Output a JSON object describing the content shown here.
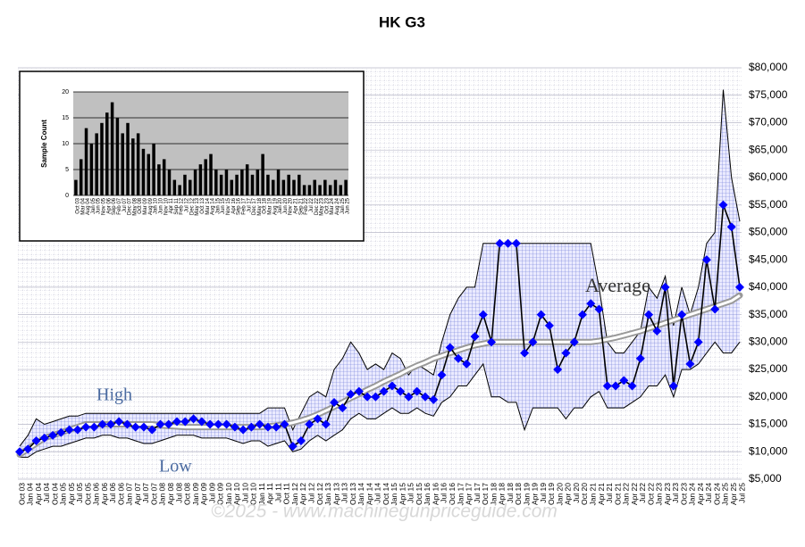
{
  "chart_data": [
    {
      "type": "line",
      "title": "HK G3",
      "source": "©2025 - www.machinegunpriceguide.com",
      "categories": [
        "Oct 03",
        "Jan 04",
        "Apr 04",
        "Jul 04",
        "Oct 04",
        "Jan 05",
        "Apr 05",
        "Jul 05",
        "Oct 05",
        "Jan 06",
        "Apr 06",
        "Jul 06",
        "Oct 06",
        "Jan 07",
        "Apr 07",
        "Jul 07",
        "Oct 07",
        "Jan 08",
        "Apr 08",
        "Jul 08",
        "Oct 08",
        "Jan 09",
        "Apr 09",
        "Jul 09",
        "Oct 09",
        "Jan 10",
        "Apr 10",
        "Jul 10",
        "Oct 10",
        "Jan 11",
        "Apr 11",
        "Jul 11",
        "Oct 11",
        "Jan 12",
        "Apr 12",
        "Jul 12",
        "Oct 12",
        "Jan 13",
        "Apr 13",
        "Jul 13",
        "Oct 13",
        "Jan 14",
        "Apr 14",
        "Jul 14",
        "Oct 14",
        "Jan 15",
        "Apr 15",
        "Jul 15",
        "Oct 15",
        "Jan 16",
        "Apr 16",
        "Jul 16",
        "Oct 16",
        "Jan 17",
        "Apr 17",
        "Jul 17",
        "Oct 17",
        "Jan 18",
        "Apr 18",
        "Jul 18",
        "Oct 18",
        "Jan 19",
        "Apr 19",
        "Jul 19",
        "Oct 19",
        "Jan 20",
        "Apr 20",
        "Jul 20",
        "Oct 20",
        "Jan 21",
        "Apr 21",
        "Jul 21",
        "Oct 21",
        "Jan 22",
        "Apr 22",
        "Jul 22",
        "Oct 22",
        "Jan 23",
        "Apr 23",
        "Jul 23",
        "Oct 23",
        "Jan 24",
        "Apr 24",
        "Jul 24",
        "Oct 24",
        "Jan 25",
        "Apr 25",
        "Jul 25"
      ],
      "series": [
        {
          "name": "High",
          "color": "#000000",
          "values": [
            11000,
            13000,
            16000,
            15000,
            15500,
            16000,
            16500,
            16500,
            17000,
            17000,
            17000,
            17000,
            17000,
            17000,
            17000,
            17000,
            17000,
            17000,
            17000,
            17000,
            17000,
            17000,
            17000,
            17000,
            17000,
            17000,
            17000,
            17000,
            17000,
            17000,
            18000,
            18000,
            18000,
            14000,
            17000,
            20000,
            21000,
            20000,
            25000,
            27000,
            30000,
            28000,
            25000,
            26000,
            25000,
            28000,
            27000,
            24000,
            26000,
            25000,
            24000,
            30000,
            35000,
            38000,
            40000,
            40000,
            48000,
            48000,
            48000,
            48000,
            48000,
            48000,
            48000,
            48000,
            48000,
            48000,
            48000,
            48000,
            48000,
            48000,
            40000,
            30000,
            28000,
            28000,
            30000,
            32000,
            40000,
            38000,
            42000,
            33000,
            40000,
            35000,
            40000,
            48000,
            50000,
            76000,
            60000,
            52000
          ]
        },
        {
          "name": "Low",
          "color": "#000000",
          "values": [
            9000,
            9000,
            10000,
            10500,
            11000,
            11000,
            11500,
            12000,
            12500,
            12500,
            13000,
            13000,
            12500,
            12500,
            12000,
            11500,
            11500,
            12000,
            12500,
            13000,
            13000,
            13000,
            12500,
            12500,
            12500,
            12500,
            12000,
            11500,
            12000,
            12000,
            11000,
            11500,
            12000,
            10000,
            10500,
            12000,
            13000,
            12000,
            13000,
            14000,
            16000,
            17000,
            16000,
            16000,
            17000,
            18000,
            17000,
            17000,
            18000,
            17000,
            16500,
            19000,
            20000,
            22000,
            22000,
            24000,
            26000,
            20000,
            20000,
            19000,
            19000,
            14000,
            18000,
            18000,
            18000,
            18000,
            16000,
            18000,
            18000,
            20000,
            21000,
            18000,
            18000,
            18000,
            19000,
            20000,
            22000,
            22000,
            24000,
            20000,
            25000,
            25000,
            26000,
            28000,
            30000,
            28000,
            28000,
            30000
          ]
        },
        {
          "name": "Average",
          "color": "#0000ff",
          "values": [
            10000,
            10500,
            12000,
            12500,
            13000,
            13500,
            14000,
            14000,
            14500,
            14500,
            15000,
            15000,
            15500,
            15000,
            14500,
            14500,
            14000,
            15000,
            15000,
            15500,
            15500,
            16000,
            15500,
            15000,
            15000,
            15000,
            14500,
            14000,
            14500,
            15000,
            14500,
            14500,
            15000,
            11000,
            12000,
            15000,
            16000,
            15000,
            19000,
            18000,
            20500,
            21000,
            20000,
            20000,
            21000,
            22000,
            21000,
            20000,
            21000,
            20000,
            19500,
            24000,
            29000,
            27000,
            26000,
            31000,
            35000,
            30000,
            48000,
            48000,
            48000,
            28000,
            30000,
            35000,
            33000,
            25000,
            28000,
            30000,
            35000,
            37000,
            36000,
            22000,
            22000,
            23000,
            22000,
            27000,
            35000,
            32000,
            40000,
            22000,
            35000,
            26000,
            30000,
            45000,
            36000,
            55000,
            51000,
            40000
          ]
        },
        {
          "color": "#999999",
          "values": [
            9500,
            10500,
            11500,
            12500,
            13000,
            13500,
            14000,
            14500,
            15000,
            15000,
            15000,
            15000,
            15000,
            15000,
            15000,
            15000,
            15000,
            14800,
            14700,
            14600,
            14500,
            14500,
            14500,
            14500,
            14500,
            14500,
            14500,
            14500,
            14500,
            14500,
            14600,
            14800,
            15000,
            15300,
            15700,
            16200,
            16800,
            17500,
            18200,
            19000,
            19800,
            20500,
            21300,
            22000,
            22800,
            23500,
            24200,
            25000,
            25700,
            26300,
            27000,
            27500,
            28000,
            28500,
            29000,
            29400,
            29700,
            30000,
            30000,
            30000,
            30000,
            30000,
            30000,
            30000,
            30000,
            30000,
            30000,
            30000,
            30000,
            30000,
            30200,
            30500,
            30800,
            31200,
            31600,
            32000,
            32500,
            33000,
            33500,
            34000,
            34500,
            35000,
            35500,
            36000,
            36500,
            37000,
            37500,
            38500
          ]
        }
      ],
      "ylim": [
        5000,
        80000
      ],
      "yticks": [
        {
          "value": 5000,
          "label": "$5,000"
        },
        {
          "value": 10000,
          "label": "$10,000"
        },
        {
          "value": 15000,
          "label": "$15,000"
        },
        {
          "value": 20000,
          "label": "$20,000"
        },
        {
          "value": 25000,
          "label": "$25,000"
        },
        {
          "value": 30000,
          "label": "$30,000"
        },
        {
          "value": 35000,
          "label": "$35,000"
        },
        {
          "value": 40000,
          "label": "$40,000"
        },
        {
          "value": 45000,
          "label": "$45,000"
        },
        {
          "value": 50000,
          "label": "$50,000"
        },
        {
          "value": 55000,
          "label": "$55,000"
        },
        {
          "value": 60000,
          "label": "$60,000"
        },
        {
          "value": 65000,
          "label": "$65,000"
        },
        {
          "value": 70000,
          "label": "$70,000"
        },
        {
          "value": 75000,
          "label": "$75,000"
        },
        {
          "value": 80000,
          "label": "$80,000"
        }
      ],
      "grid": true
    },
    {
      "type": "bar",
      "ylabel": "Sample Count",
      "color": "#000000",
      "categories": [
        "Oct 03",
        "Mar 04",
        "Aug 04",
        "Jan 05",
        "Jun 05",
        "Nov 05",
        "Apr 06",
        "Sep 06",
        "Feb 07",
        "Jul 07",
        "Dec 07",
        "May 08",
        "Oct 08",
        "Mar 09",
        "Aug 09",
        "Jan 10",
        "Jun 10",
        "Nov 10",
        "Apr 11",
        "Sep 11",
        "Feb 12",
        "Jul 12",
        "Dec 12",
        "May 13",
        "Oct 13",
        "Mar 14",
        "Aug 14",
        "Jan 15",
        "Jun 15",
        "Nov 15",
        "Apr 16",
        "Sep 16",
        "Feb 17",
        "Jul 17",
        "Dec 17",
        "May 18",
        "Oct 18",
        "Mar 19",
        "Aug 19",
        "Jan 20",
        "Jun 20",
        "Nov 20",
        "Apr 21",
        "Sep 21",
        "Feb 22",
        "Jul 22",
        "Dec 22",
        "May 23",
        "Oct 23",
        "Mar 24",
        "Aug 24",
        "Jan 25",
        "Jun 25"
      ],
      "values": [
        3,
        7,
        13,
        10,
        12,
        14,
        16,
        18,
        15,
        12,
        14,
        11,
        12,
        9,
        8,
        10,
        6,
        7,
        5,
        3,
        2,
        4,
        3,
        5,
        6,
        7,
        8,
        5,
        4,
        5,
        3,
        4,
        5,
        6,
        4,
        5,
        8,
        4,
        3,
        5,
        3,
        4,
        3,
        4,
        2,
        2,
        3,
        2,
        3,
        2,
        3,
        2,
        3
      ],
      "ylim": [
        0,
        20
      ],
      "yticks": [
        0,
        5,
        10,
        15,
        20
      ],
      "grid": true
    }
  ]
}
